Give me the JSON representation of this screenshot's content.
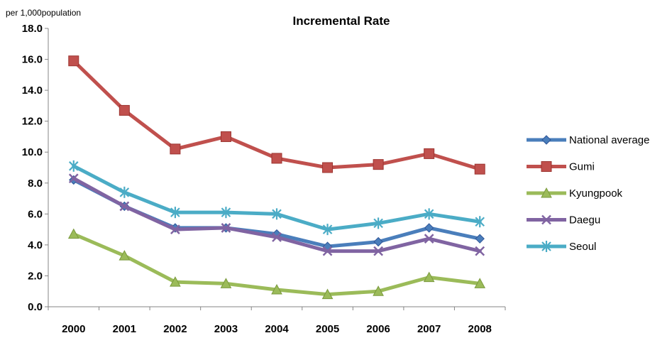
{
  "chart_data": {
    "type": "line",
    "title": "Incremental Rate",
    "unit_label": "per 1,000population",
    "xlabel": "",
    "ylabel": "",
    "categories": [
      "2000",
      "2001",
      "2002",
      "2003",
      "2004",
      "2005",
      "2006",
      "2007",
      "2008"
    ],
    "y_ticks": [
      "0.0",
      "2.0",
      "4.0",
      "6.0",
      "8.0",
      "10.0",
      "12.0",
      "14.0",
      "16.0",
      "18.0"
    ],
    "ylim": [
      0,
      18
    ],
    "grid": false,
    "legend_position": "right",
    "series": [
      {
        "name": "National average",
        "color": "#4a7ebb",
        "marker": "diamond",
        "values": [
          8.2,
          6.5,
          5.1,
          5.1,
          4.7,
          3.9,
          4.2,
          5.1,
          4.4
        ]
      },
      {
        "name": "Gumi",
        "color": "#c0504d",
        "marker": "square",
        "values": [
          15.9,
          12.7,
          10.2,
          11.0,
          9.6,
          9.0,
          9.2,
          9.9,
          8.9
        ]
      },
      {
        "name": "Kyungpook",
        "color": "#9bbb59",
        "marker": "triangle",
        "values": [
          4.7,
          3.3,
          1.6,
          1.5,
          1.1,
          0.8,
          1.0,
          1.9,
          1.5
        ]
      },
      {
        "name": "Daegu",
        "color": "#8064a2",
        "marker": "x",
        "values": [
          8.3,
          6.5,
          5.0,
          5.1,
          4.5,
          3.6,
          3.6,
          4.4,
          3.6
        ]
      },
      {
        "name": "Seoul",
        "color": "#4bacc6",
        "marker": "star",
        "values": [
          9.1,
          7.4,
          6.1,
          6.1,
          6.0,
          5.0,
          5.4,
          6.0,
          5.5
        ]
      }
    ]
  }
}
